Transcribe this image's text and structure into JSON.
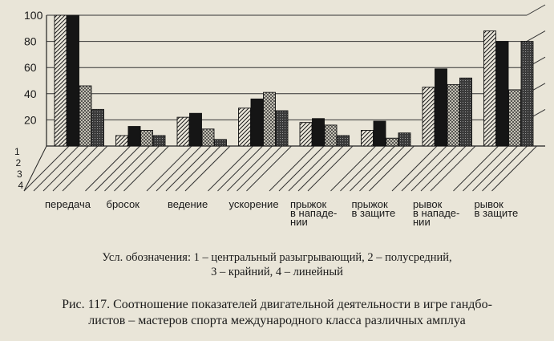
{
  "chart_data": {
    "type": "bar",
    "ylim": [
      0,
      100
    ],
    "yticks": [
      "20",
      "40",
      "60",
      "80",
      "100"
    ],
    "series_ticks": [
      "1",
      "2",
      "3",
      "4"
    ],
    "categories": [
      [
        "передача"
      ],
      [
        "бросок"
      ],
      [
        "ведение"
      ],
      [
        "ускорение"
      ],
      [
        "прыжок",
        "в нападе-",
        "нии"
      ],
      [
        "прыжок",
        "в защите"
      ],
      [
        "рывок",
        "в нападе-",
        "нии"
      ],
      [
        "рывок",
        "в защите"
      ]
    ],
    "series": [
      {
        "name": "1",
        "values": [
          100,
          8,
          22,
          29,
          18,
          12,
          45,
          88
        ]
      },
      {
        "name": "2",
        "values": [
          100,
          15,
          25,
          36,
          21,
          19,
          59,
          80
        ]
      },
      {
        "name": "3",
        "values": [
          46,
          12,
          13,
          41,
          16,
          6,
          47,
          43
        ]
      },
      {
        "name": "4",
        "values": [
          28,
          8,
          5,
          27,
          8,
          10,
          52,
          80
        ]
      }
    ]
  },
  "legend": {
    "line1": "Усл. обозначения: 1 – центральный разыгрывающий, 2 – полусредний,",
    "line2": "3 – крайний, 4 – линейный"
  },
  "caption": {
    "line1": "Рис. 117. Соотношение показателей двигательной деятельности в игре гандбо-",
    "line2": "листов – мастеров спорта международного класса различных амплуа"
  },
  "colors": {
    "background": "#e9e5d8",
    "ink": "#1a1a1a",
    "series1": "diagonal hatch",
    "series2": "#151515",
    "series3": "crosshatch",
    "series4": "#4a4a4a"
  }
}
